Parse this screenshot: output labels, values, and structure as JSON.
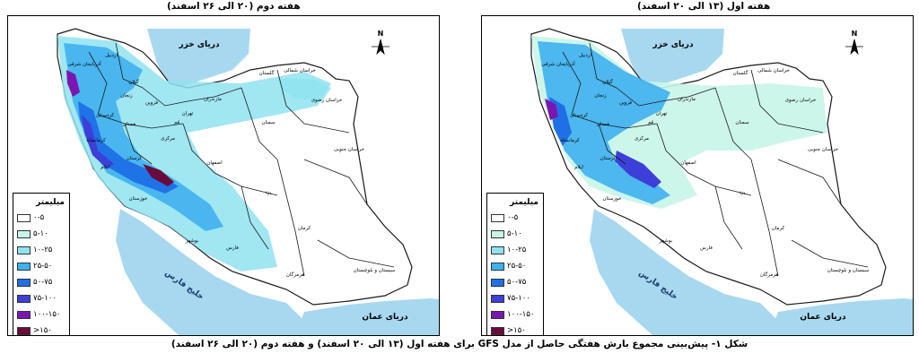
{
  "panels": [
    {
      "title": "هفته دوم (۲۰ الی ۲۶ اسفند)",
      "caspian_label": "دریای خزر",
      "gulf_label": "خلیج فارس",
      "oman_label": "دریای عمان",
      "north_label": "N",
      "provinces": [
        "آذربایجان شرقی",
        "اردبیل",
        "گیلان",
        "مازندران",
        "گلستان",
        "خراسان شمالی",
        "خراسان رضوی",
        "سمنان",
        "تهران",
        "قزوین",
        "زنجان",
        "کردستان",
        "کرمانشاه",
        "همدان",
        "مرکزی",
        "قم",
        "اصفهان",
        "لرستان",
        "ایلام",
        "خوزستان",
        "یزد",
        "خراسان جنوبی",
        "کرمان",
        "فارس",
        "بوشهر",
        "هرمزگان",
        "سیستان و بلوچستان"
      ]
    },
    {
      "title": "هفته اول (۱۳ الی ۲۰ اسفند)",
      "caspian_label": "دریای خزر",
      "gulf_label": "خلیج فارس",
      "oman_label": "دریای عمان",
      "north_label": "N",
      "provinces": [
        "آذربایجان شرقی",
        "اردبیل",
        "گیلان",
        "مازندران",
        "گلستان",
        "خراسان شمالی",
        "خراسان رضوی",
        "سمنان",
        "تهران",
        "قزوین",
        "زنجان",
        "کردستان",
        "کرمانشاه",
        "همدان",
        "مرکزی",
        "قم",
        "اصفهان",
        "لرستان",
        "ایلام",
        "خوزستان",
        "یزد",
        "خراسان جنوبی",
        "کرمان",
        "فارس",
        "بوشهر",
        "هرمزگان",
        "سیستان و بلوچستان"
      ]
    }
  ],
  "legend": {
    "title": "میلیمتر",
    "items": [
      {
        "label": "۰-۵",
        "color": "#ffffff"
      },
      {
        "label": "۵-۱۰",
        "color": "#c8f5e8"
      },
      {
        "label": "۱۰-۲۵",
        "color": "#8fe3f0"
      },
      {
        "label": "۲۵-۵۰",
        "color": "#3fb0f0"
      },
      {
        "label": "۵۰-۷۵",
        "color": "#1f6fe6"
      },
      {
        "label": "۷۵-۱۰۰",
        "color": "#3c3fd8"
      },
      {
        "label": "۱۰۰-۱۵۰",
        "color": "#7b17b0"
      },
      {
        "label": ">۱۵۰",
        "color": "#6b0a3c"
      }
    ]
  },
  "caption": "شکل ۱- پیش‌بینی مجموع بارش هفتگی حاصل از مدل GFS برای هفته اول (۱۳ الی ۲۰ اسفند) و هفته دوم (۲۰ الی ۲۶ اسفند)",
  "colors": {
    "sea": "#a8d8f0",
    "border": "#1a1a1a"
  }
}
